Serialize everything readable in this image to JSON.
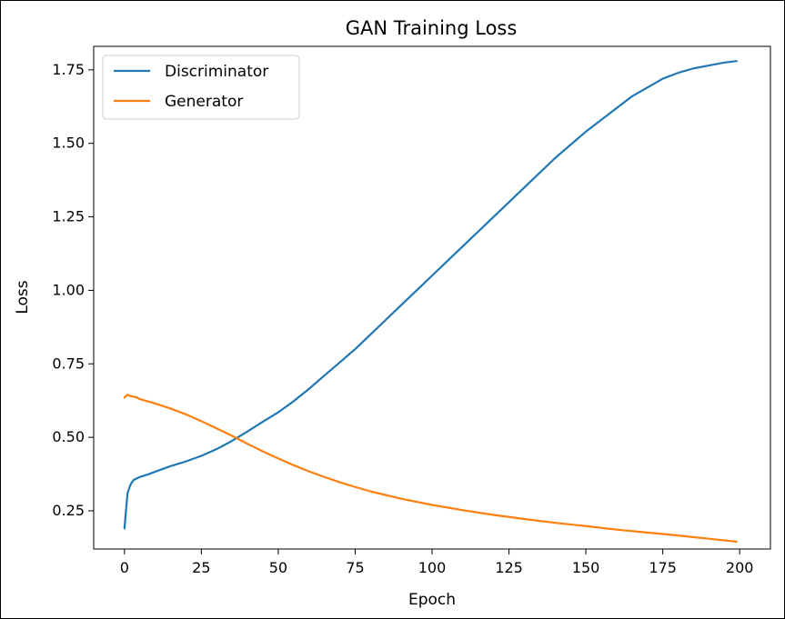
{
  "chart_data": {
    "type": "line",
    "title": "GAN Training Loss",
    "xlabel": "Epoch",
    "ylabel": "Loss",
    "xlim": [
      -10,
      210
    ],
    "ylim": [
      0.12,
      1.83
    ],
    "xticks": [
      0,
      25,
      50,
      75,
      100,
      125,
      150,
      175,
      200
    ],
    "yticks": [
      0.25,
      0.5,
      0.75,
      1.0,
      1.25,
      1.5,
      1.75
    ],
    "xtick_labels": [
      "0",
      "25",
      "50",
      "75",
      "100",
      "125",
      "150",
      "175",
      "200"
    ],
    "ytick_labels": [
      "0.25",
      "0.50",
      "0.75",
      "1.00",
      "1.25",
      "1.50",
      "1.75"
    ],
    "grid": false,
    "legend_position": "top-left",
    "series": [
      {
        "name": "Discriminator",
        "color": "#1f77b4",
        "x": [
          0,
          1,
          2,
          3,
          4,
          5,
          8,
          10,
          15,
          20,
          25,
          30,
          35,
          40,
          45,
          50,
          55,
          60,
          65,
          70,
          75,
          80,
          85,
          90,
          95,
          100,
          105,
          110,
          115,
          120,
          125,
          130,
          135,
          140,
          145,
          150,
          155,
          160,
          165,
          170,
          175,
          180,
          185,
          190,
          195,
          199
        ],
        "y": [
          0.19,
          0.31,
          0.34,
          0.355,
          0.36,
          0.365,
          0.375,
          0.383,
          0.402,
          0.418,
          0.437,
          0.46,
          0.488,
          0.52,
          0.553,
          0.585,
          0.623,
          0.665,
          0.71,
          0.755,
          0.8,
          0.85,
          0.9,
          0.95,
          1.0,
          1.05,
          1.1,
          1.15,
          1.2,
          1.25,
          1.3,
          1.35,
          1.4,
          1.45,
          1.495,
          1.54,
          1.58,
          1.62,
          1.66,
          1.69,
          1.72,
          1.74,
          1.755,
          1.765,
          1.775,
          1.78
        ]
      },
      {
        "name": "Generator",
        "color": "#ff7f0e",
        "x": [
          0,
          1,
          2,
          3,
          4,
          5,
          10,
          15,
          20,
          25,
          30,
          35,
          40,
          45,
          50,
          55,
          60,
          65,
          70,
          75,
          80,
          90,
          100,
          110,
          120,
          130,
          140,
          150,
          160,
          170,
          180,
          190,
          199
        ],
        "y": [
          0.635,
          0.645,
          0.64,
          0.638,
          0.636,
          0.63,
          0.615,
          0.598,
          0.578,
          0.555,
          0.53,
          0.505,
          0.478,
          0.452,
          0.428,
          0.405,
          0.384,
          0.365,
          0.347,
          0.331,
          0.316,
          0.291,
          0.27,
          0.252,
          0.236,
          0.222,
          0.209,
          0.198,
          0.186,
          0.176,
          0.166,
          0.155,
          0.145
        ]
      }
    ]
  }
}
